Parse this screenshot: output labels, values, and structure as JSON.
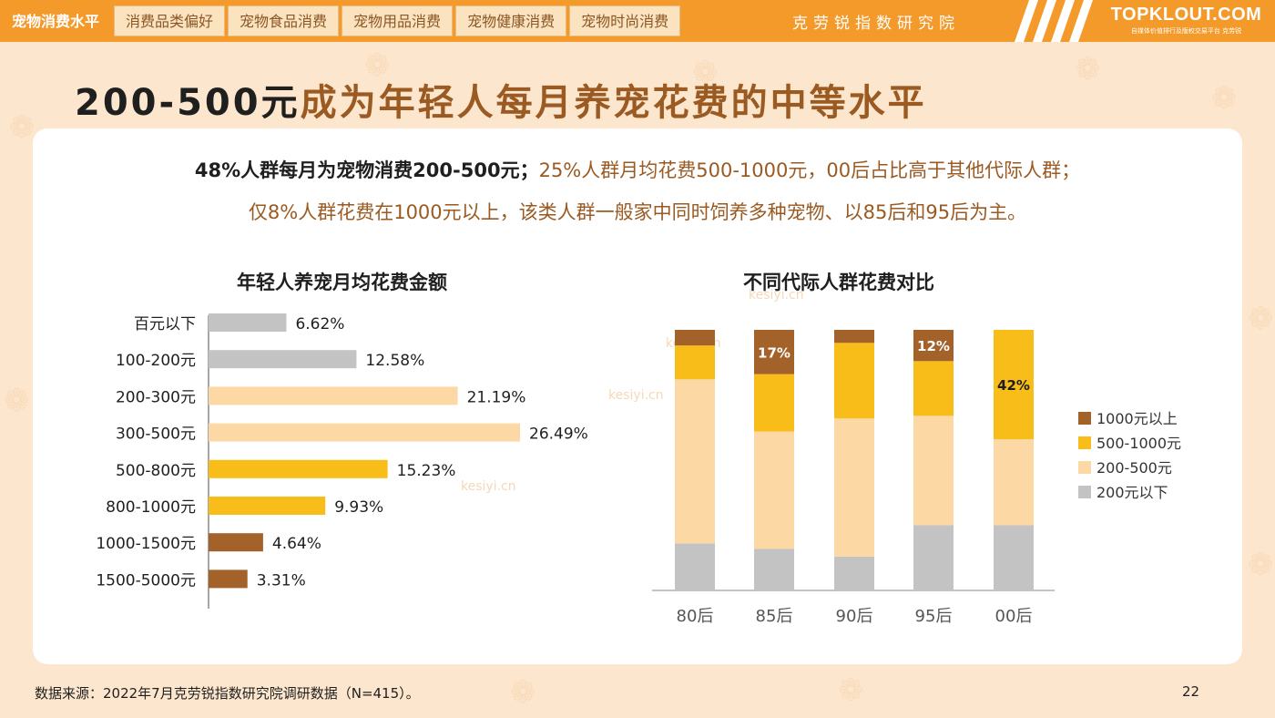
{
  "nav": {
    "tabs": [
      "宠物消费水平",
      "消费品类偏好",
      "宠物食品消费",
      "宠物用品消费",
      "宠物健康消费",
      "宠物时尚消费"
    ],
    "active_index": 0,
    "org_name": "克劳锐指数研究院",
    "logo": {
      "main": "TOPKLOUT.COM",
      "sub": "自媒体价值排行及版权交易平台 克劳锐"
    }
  },
  "title": {
    "accent": "200-500元",
    "rest": "成为年轻人每月养宠花费的中等水平"
  },
  "summary": {
    "line1_bold": "48%人群每月为宠物消费200-500元；",
    "line1_rest": "25%人群月均花费500-1000元，00后占比高于其他代际人群；",
    "line2": "仅8%人群花费在1000元以上，该类人群一般家中同时饲养多种宠物、以85后和95后为主。"
  },
  "watermark": "kesiyi.cn",
  "colors": {
    "over1000": "#a3622a",
    "r500_1000": "#f9bd19",
    "r200_500": "#fcd8a5",
    "under200": "#c3c3c3"
  },
  "chart_data": [
    {
      "type": "bar",
      "orientation": "horizontal",
      "title": "年轻人养宠月均花费金额",
      "categories": [
        "百元以下",
        "100-200元",
        "200-300元",
        "300-500元",
        "500-800元",
        "800-1000元",
        "1000-1500元",
        "1500-5000元"
      ],
      "values": [
        6.62,
        12.58,
        21.19,
        26.49,
        15.23,
        9.93,
        4.64,
        3.31
      ],
      "labels": [
        "6.62%",
        "12.58%",
        "21.19%",
        "26.49%",
        "15.23%",
        "9.93%",
        "4.64%",
        "3.31%"
      ],
      "bar_colors": [
        "#c3c3c3",
        "#c3c3c3",
        "#fcd8a5",
        "#fcd8a5",
        "#f9bd19",
        "#f9bd19",
        "#a3622a",
        "#a3622a"
      ],
      "xlim": [
        0,
        30
      ],
      "unit": "%"
    },
    {
      "type": "bar",
      "stacked": true,
      "normalized": true,
      "title": "不同代际人群花费对比",
      "categories": [
        "80后",
        "85后",
        "90后",
        "95后",
        "00后"
      ],
      "series": [
        {
          "name": "200元以下",
          "values": [
            18,
            16,
            13,
            25,
            25
          ],
          "color": "#c3c3c3"
        },
        {
          "name": "200-500元",
          "values": [
            63,
            45,
            53,
            42,
            33
          ],
          "color": "#fcd8a5"
        },
        {
          "name": "500-1000元",
          "values": [
            13,
            22,
            29,
            21,
            42
          ],
          "color": "#f9bd19"
        },
        {
          "name": "1000元以上",
          "values": [
            6,
            17,
            5,
            12,
            0
          ],
          "color": "#a3622a"
        }
      ],
      "annotations": [
        {
          "category": "85后",
          "series": "1000元以上",
          "text": "17%"
        },
        {
          "category": "95后",
          "series": "1000元以上",
          "text": "12%"
        },
        {
          "category": "00后",
          "series": "500-1000元",
          "text": "42%"
        }
      ],
      "legend_order": [
        "1000元以上",
        "500-1000元",
        "200-500元",
        "200元以下"
      ],
      "legend_position": "right",
      "ylim": [
        0,
        100
      ]
    }
  ],
  "footer": {
    "source": "数据来源：2022年7月克劳锐指数研究院调研数据（N=415）。",
    "page_number": "22"
  }
}
